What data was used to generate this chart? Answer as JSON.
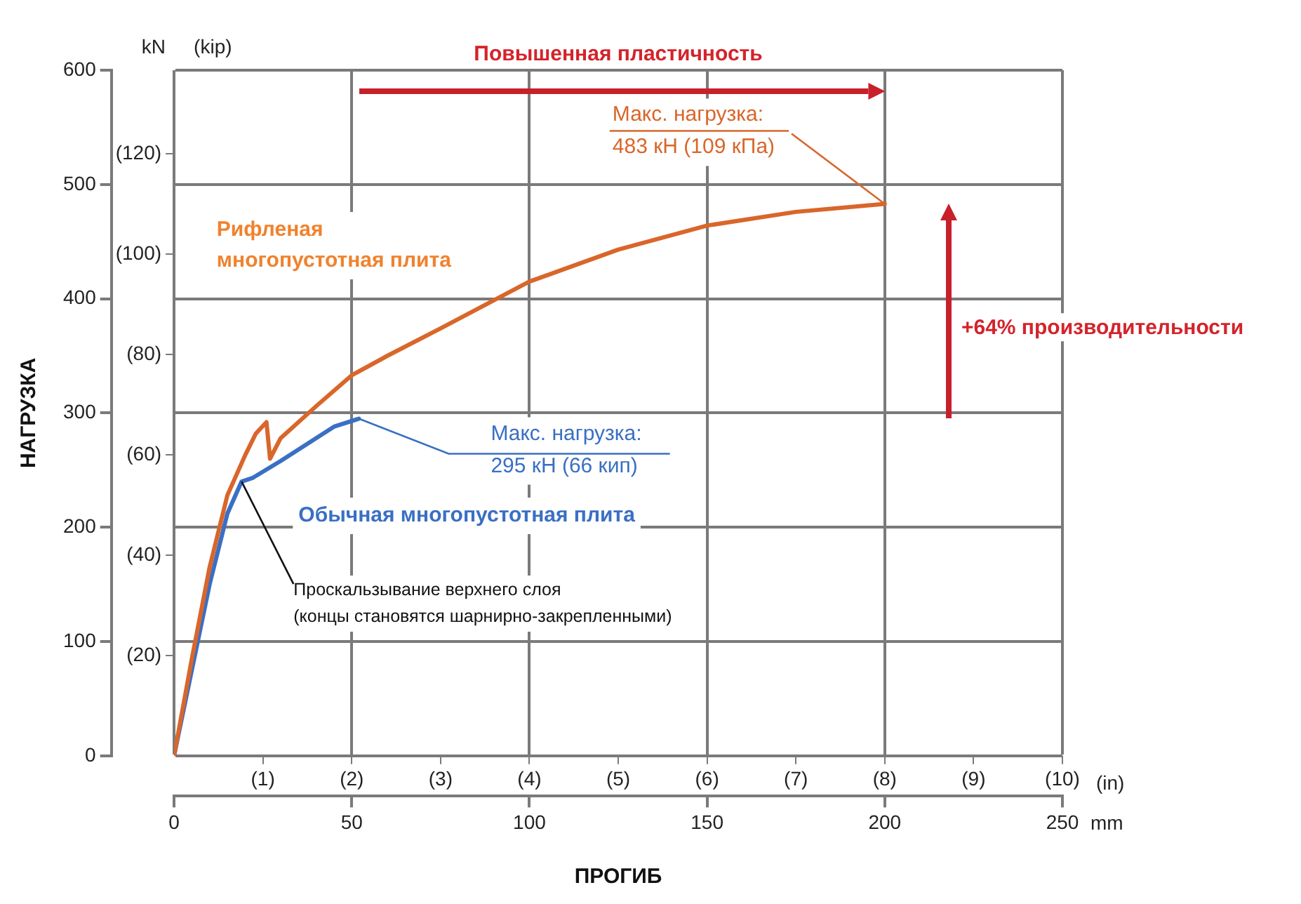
{
  "chart_data": {
    "type": "line",
    "xlabel": "ПРОГИБ",
    "ylabel": "НАГРУЗКА",
    "x2label": "(in)",
    "y2label": "(kip)",
    "series": [
      {
        "name": "Рифленая многопустотная плита",
        "color": "#d9662a",
        "x": [
          0,
          5,
          10,
          15,
          20,
          23,
          26,
          27,
          30,
          40,
          50,
          60,
          75,
          100,
          125,
          150,
          175,
          200
        ],
        "values": [
          0,
          85,
          165,
          228,
          263,
          282,
          292,
          260,
          278,
          306,
          333,
          350,
          374,
          415,
          443,
          464,
          476,
          483
        ]
      },
      {
        "name": "Обычная многопустотная плита",
        "color": "#3a6fc4",
        "x": [
          0,
          5,
          10,
          15,
          19,
          22,
          30,
          40,
          45,
          52
        ],
        "values": [
          0,
          75,
          150,
          212,
          240,
          243,
          258,
          278,
          288,
          295
        ]
      }
    ],
    "xlim": [
      0,
      250
    ],
    "xticks": [
      0,
      50,
      100,
      150,
      200,
      250
    ],
    "ylim": [
      0,
      600
    ],
    "yticks": [
      0,
      100,
      200,
      300,
      400,
      500,
      600
    ],
    "x2lim": [
      0,
      10
    ],
    "x2ticks": [
      {
        "value": 1,
        "label": "(1)"
      },
      {
        "value": 2,
        "label": "(2)"
      },
      {
        "value": 3,
        "label": "(3)"
      },
      {
        "value": 4,
        "label": "(4)"
      },
      {
        "value": 5,
        "label": "(5)"
      },
      {
        "value": 6,
        "label": "(6)"
      },
      {
        "value": 7,
        "label": "(7)"
      },
      {
        "value": 8,
        "label": "(8)"
      },
      {
        "value": 9,
        "label": "(9)"
      },
      {
        "value": 10,
        "label": "(10)"
      }
    ],
    "y2lim": [
      0,
      136.7
    ],
    "y2ticks": [
      {
        "value": 20,
        "label": "(20)"
      },
      {
        "value": 40,
        "label": "(40)"
      },
      {
        "value": 60,
        "label": "(60)"
      },
      {
        "value": 80,
        "label": "(80)"
      },
      {
        "value": 100,
        "label": "(100)"
      },
      {
        "value": 120,
        "label": "(120)"
      }
    ],
    "annotations": [
      "kN",
      "mm",
      "Повышенная пластичность",
      {
        "text": "Макс. нагрузка:\n483 кН (109 кПа)",
        "x": 200,
        "y": 483
      },
      {
        "text": "Макс. нагрузка:\n295 кН (66 кип)",
        "x": 52,
        "y": 295
      },
      {
        "text": "Проскальзывание верхнего слоя\n(концы становятся шарнирно-закрепленными)",
        "x": 19,
        "y": 240
      },
      "+64% производительности"
    ],
    "grid": true,
    "legend": false,
    "marker": "none",
    "line_style": "solid"
  }
}
